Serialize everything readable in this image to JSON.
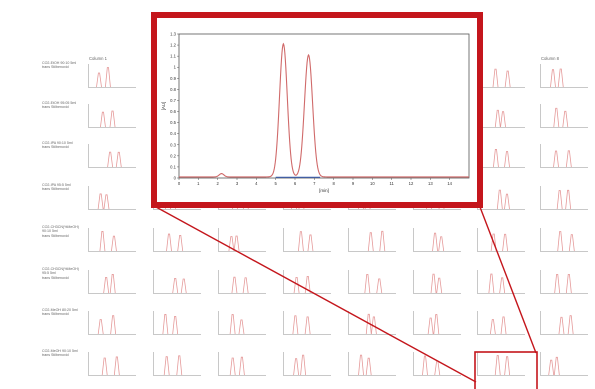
{
  "column_labels": [
    "Column 1",
    "",
    "",
    "",
    "",
    "",
    "umn 7",
    "Column 8"
  ],
  "row_labels": [
    [
      "CO2-EtOH 90:10 5ml",
      "trans Stilbenoxid"
    ],
    [
      "CO2-EtOH 95:05 5ml",
      "trans Stilbenoxid"
    ],
    [
      "CO2-IPA 90:10 5ml",
      "trans Stilbenoxid"
    ],
    [
      "CO2-IPA 95:5 5ml",
      "trans Stilbenoxid"
    ],
    [
      "CO2-CH3CN(%MeOH)",
      "90:10 5ml",
      "trans Stilbenoxid"
    ],
    [
      "CO2-CH3CN(%MeOH)",
      "95:5 5ml",
      "trans Stilbenoxid"
    ],
    [
      "CO2-MeOH 80:20 5ml",
      "trans Stilbenoxid"
    ],
    [
      "CO2-MeOH 90:10 5ml",
      "trans Stilbenoxid"
    ]
  ],
  "chart_data": {
    "type": "line",
    "title": "",
    "xlabel": "[min]",
    "ylabel": "[AU]",
    "xlim": [
      0,
      15
    ],
    "ylim": [
      0,
      1.3
    ],
    "x_ticks": [
      "0",
      "1",
      "2",
      "3",
      "4",
      "5",
      "6",
      "7",
      "8",
      "9",
      "10",
      "11",
      "12",
      "13",
      "14"
    ],
    "y_ticks": [
      "0",
      "0.1",
      "0.2",
      "0.3",
      "0.4",
      "0.5",
      "0.6",
      "0.7",
      "0.8",
      "0.9",
      "1",
      "1.1",
      "1.2",
      "1.3"
    ],
    "peaks": [
      {
        "x": 2.2,
        "y": 0.03
      },
      {
        "x": 5.4,
        "y": 1.2
      },
      {
        "x": 6.7,
        "y": 1.1
      }
    ],
    "series_colors": [
      "#d06a6a",
      "#3a5ba8"
    ]
  },
  "colors": {
    "highlight": "#c4161c",
    "trace": "#e59a9a"
  }
}
